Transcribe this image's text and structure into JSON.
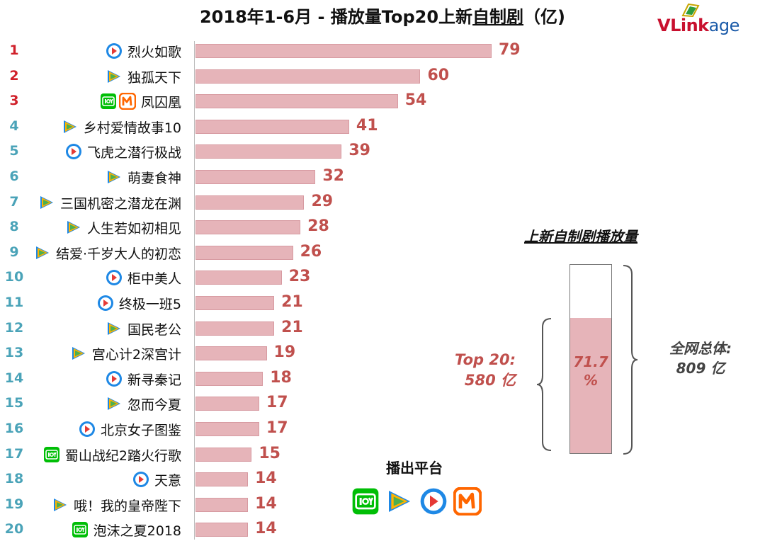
{
  "title": {
    "main": "2018年1-6月 - 播放量Top20上新",
    "emph": "自制剧",
    "unit": "（亿)"
  },
  "logo": {
    "brand": "VLink",
    "suffix": "age"
  },
  "colors": {
    "rank_top3": "#d0202a",
    "rank_other": "#4aa3b8",
    "bar": "#e6b4b9",
    "value": "#c0504d",
    "iqiyi": "#00be06",
    "mango": "#ff6600",
    "youku": "#1e88e5",
    "tencent": "#ffb300"
  },
  "chart_data": {
    "type": "bar",
    "orientation": "horizontal",
    "xlim": [
      0,
      80
    ],
    "categories": [
      "烈火如歌",
      "独孤天下",
      "凤囚凰",
      "乡村爱情故事10",
      "飞虎之潜行极战",
      "萌妻食神",
      "三国机密之潜龙在渊",
      "人生若如初相见",
      "结爱·千岁大人的初恋",
      "柜中美人",
      "终极一班5",
      "国民老公",
      "宫心计2深宫计",
      "新寻秦记",
      "忽而今夏",
      "北京女子图鉴",
      "蜀山战纪2踏火行歌",
      "天意",
      "哦！我的皇帝陛下",
      "泡沫之夏2018"
    ],
    "ranks": [
      "1",
      "2",
      "3",
      "4",
      "5",
      "6",
      "7",
      "8",
      "9",
      "10",
      "11",
      "12",
      "13",
      "14",
      "15",
      "16",
      "17",
      "18",
      "19",
      "20"
    ],
    "values": [
      79,
      60,
      54,
      41,
      39,
      32,
      29,
      28,
      26,
      23,
      21,
      21,
      19,
      18,
      17,
      17,
      15,
      14,
      14,
      14
    ],
    "platforms": [
      [
        "youku-icon"
      ],
      [
        "tencent-icon"
      ],
      [
        "iqiyi-icon",
        "mango-icon"
      ],
      [
        "tencent-icon"
      ],
      [
        "youku-icon"
      ],
      [
        "tencent-icon"
      ],
      [
        "tencent-icon"
      ],
      [
        "tencent-icon"
      ],
      [
        "tencent-icon"
      ],
      [
        "youku-icon"
      ],
      [
        "youku-icon"
      ],
      [
        "tencent-icon"
      ],
      [
        "tencent-icon"
      ],
      [
        "youku-icon"
      ],
      [
        "tencent-icon"
      ],
      [
        "youku-icon"
      ],
      [
        "iqiyi-icon"
      ],
      [
        "youku-icon"
      ],
      [
        "tencent-icon"
      ],
      [
        "iqiyi-icon"
      ]
    ]
  },
  "share_panel": {
    "title": "上新自制剧播放量",
    "fraction": 0.717,
    "percent_label": "71.7 %",
    "top_label_1": "Top 20:",
    "top_label_2": "580 亿",
    "total_label_1": "全网总体:",
    "total_label_2": "809 亿"
  },
  "platform_legend": {
    "title": "播出平台",
    "icons": [
      "iqiyi-icon",
      "tencent-icon",
      "youku-icon",
      "mango-icon"
    ]
  }
}
